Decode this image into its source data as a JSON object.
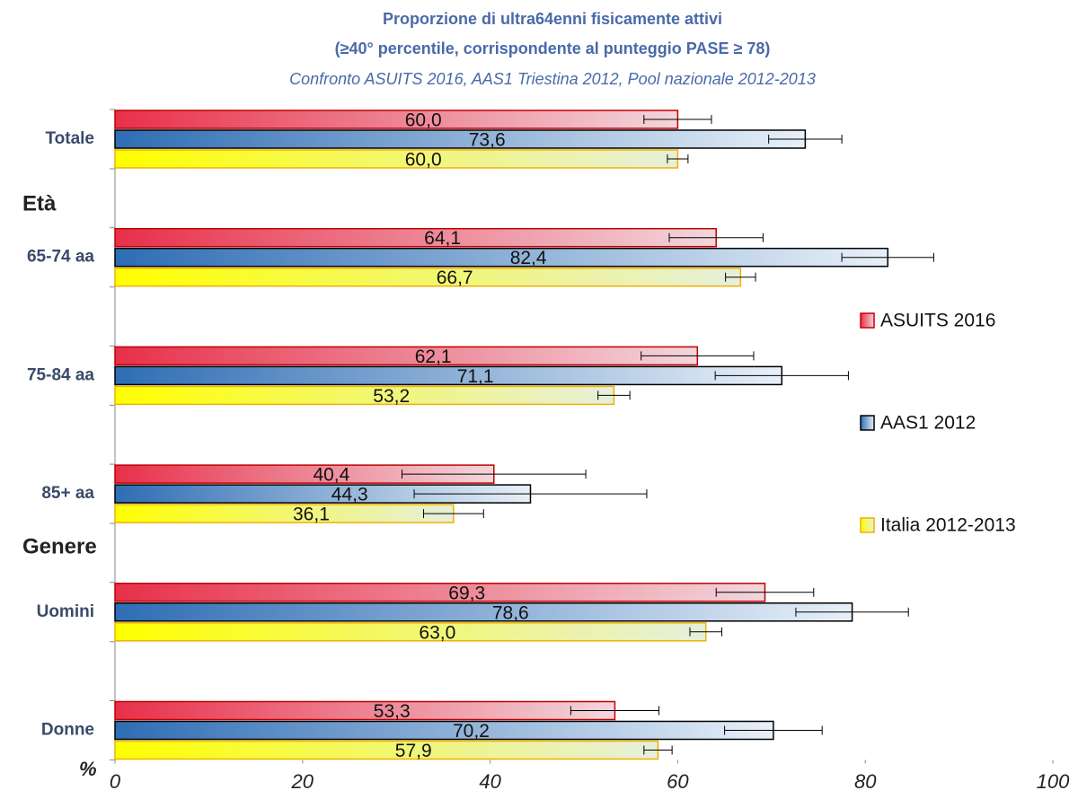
{
  "chart_data": {
    "type": "hbar",
    "title": "Proporzione di ultra64enni fisicamente attivi",
    "title2": "(≥40° percentile, corrispondente al punteggio PASE ≥ 78)",
    "subtitle": "Confronto ASUITS 2016, AAS1 Triestina 2012, Pool nazionale 2012-2013",
    "section_labels": [
      "Età",
      "Genere"
    ],
    "x_label": "%",
    "categories": [
      "Totale",
      "65-74 aa",
      "75-84 aa",
      "85+ aa",
      "Uomini",
      "Donne"
    ],
    "series": [
      {
        "name": "ASUITS 2016",
        "color": "#e8304a",
        "color_light": "#f2d6dc",
        "stroke": "#c00000",
        "values": [
          60.0,
          64.1,
          62.1,
          40.4,
          69.3,
          53.3
        ],
        "value_labels": [
          "60,0",
          "64,1",
          "62,1",
          "40,4",
          "69,3",
          "53,3"
        ],
        "errors": [
          3.6,
          5.0,
          6.0,
          9.8,
          5.2,
          4.7
        ]
      },
      {
        "name": "AAS1 2012",
        "color": "#2e6db4",
        "color_light": "#e8f0f8",
        "stroke": "#000000",
        "values": [
          73.6,
          82.4,
          71.1,
          44.3,
          78.6,
          70.2
        ],
        "value_labels": [
          "73,6",
          "82,4",
          "71,1",
          "44,3",
          "78,6",
          "70,2"
        ],
        "errors": [
          3.9,
          4.9,
          7.1,
          12.4,
          6.0,
          5.2
        ]
      },
      {
        "name": "Italia 2012-2013",
        "color": "#ffff00",
        "color_light": "#e6efdc",
        "stroke": "#f0b000",
        "values": [
          60.0,
          66.7,
          53.2,
          36.1,
          63.0,
          57.9
        ],
        "value_labels": [
          "60,0",
          "66,7",
          "53,2",
          "36,1",
          "63,0",
          "57,9"
        ],
        "errors": [
          1.1,
          1.6,
          1.7,
          3.2,
          1.7,
          1.5
        ]
      }
    ],
    "xlim": [
      0,
      100
    ],
    "xticks": [
      0,
      20,
      40,
      60,
      80,
      100
    ]
  }
}
